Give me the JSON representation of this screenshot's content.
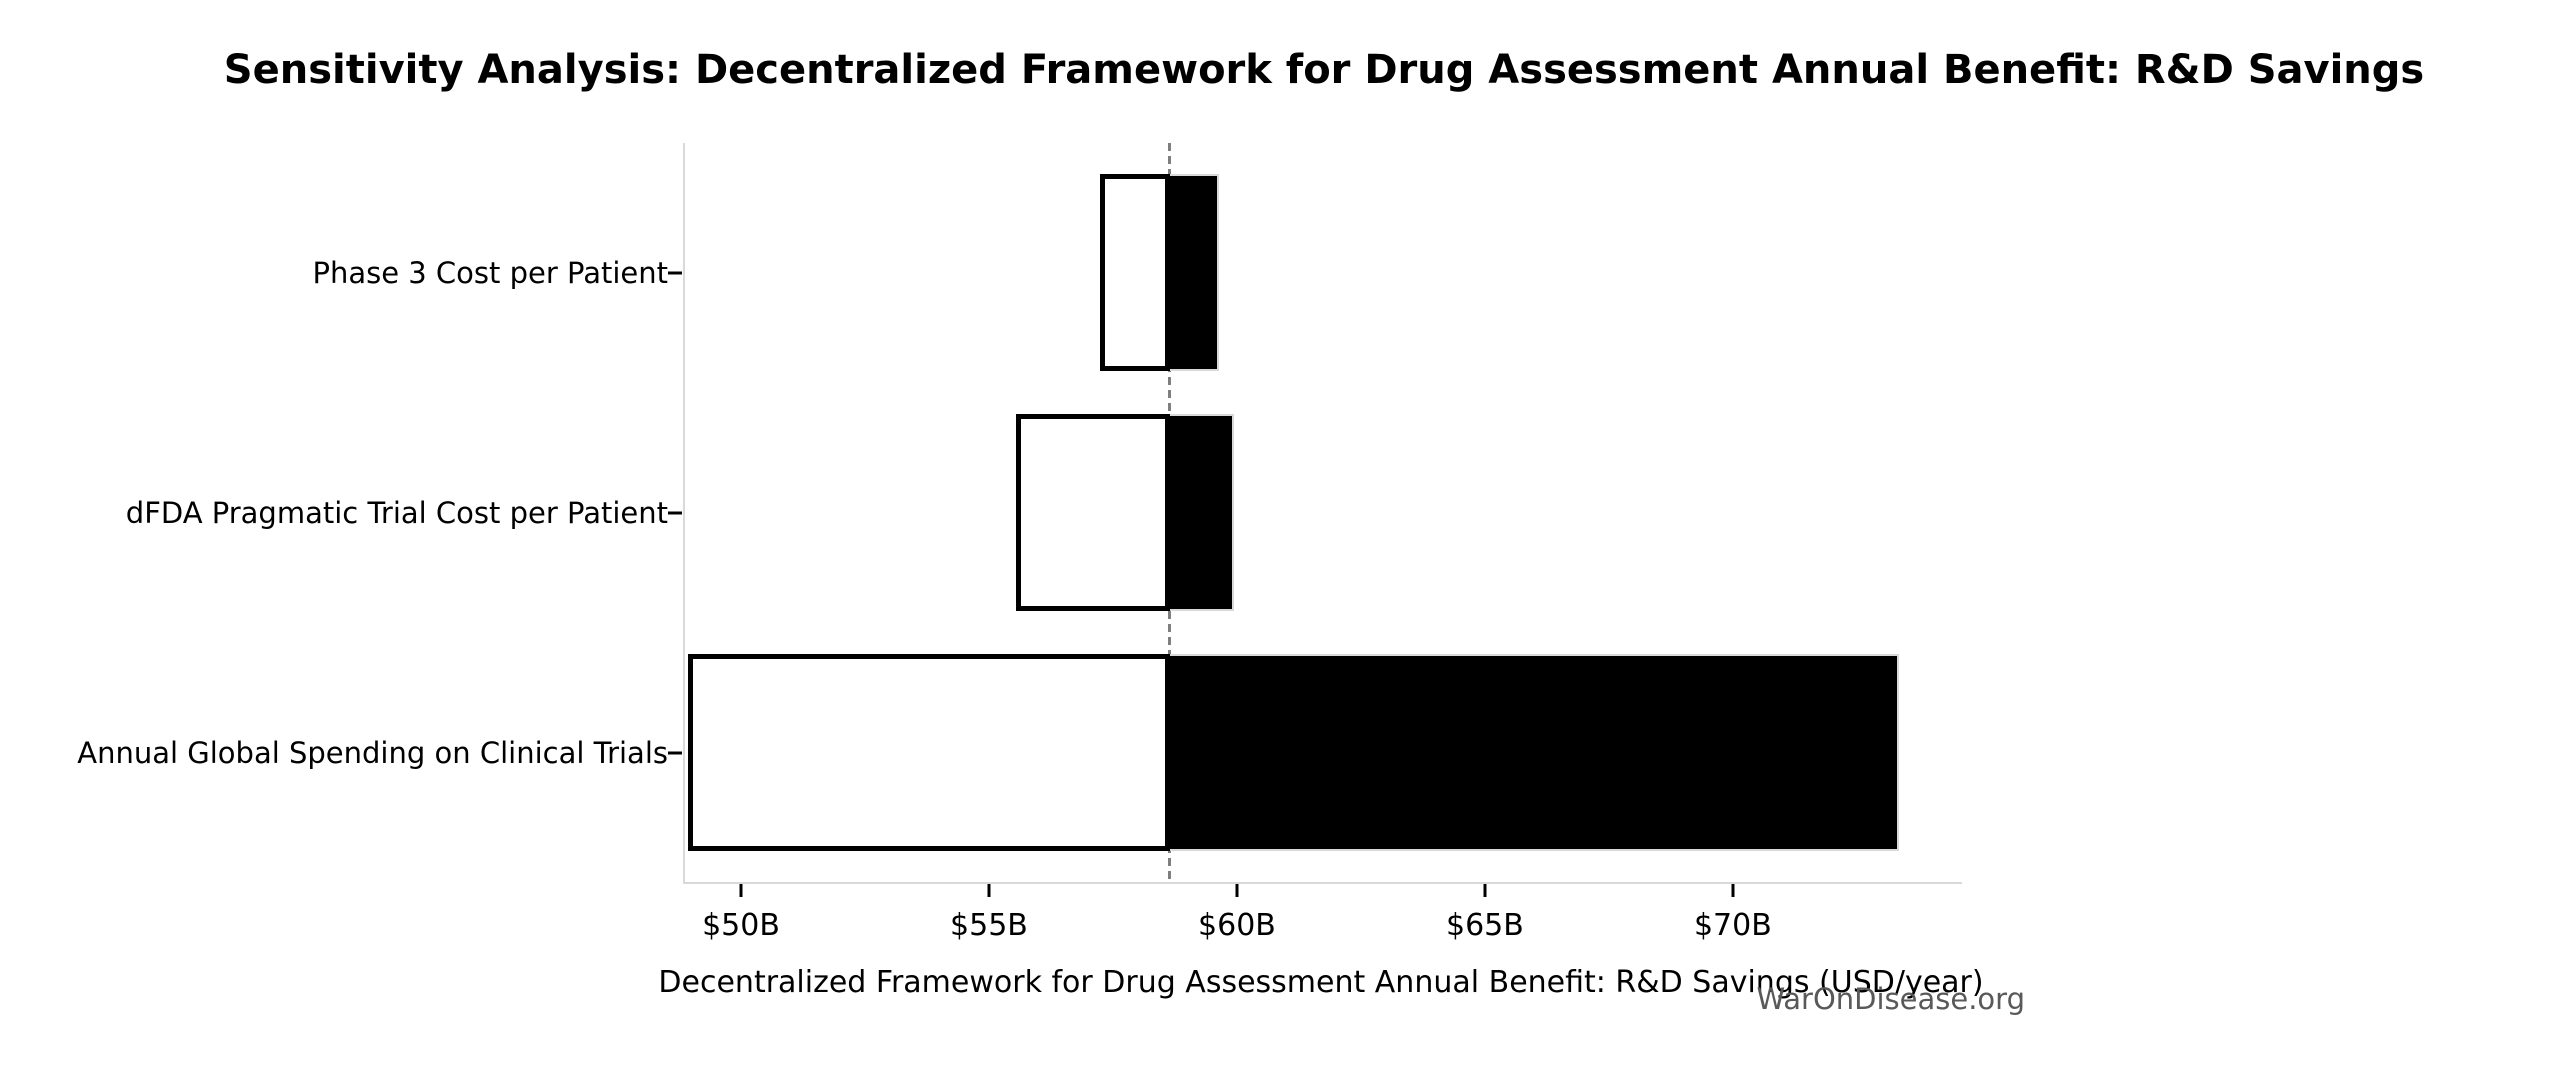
{
  "page": {
    "background_color": "#ffffff"
  },
  "chart_data": {
    "type": "bar",
    "subtype": "tornado-sensitivity",
    "orientation": "horizontal",
    "title": "Sensitivity Analysis: Decentralized Framework for Drug Assessment Annual Benefit: R&D Savings",
    "xlabel": "Decentralized Framework for Drug Assessment Annual Benefit: R&D Savings (USD/year)",
    "watermark": "WarOnDisease.org",
    "grid": false,
    "legend": false,
    "xlim": [
      48.83,
      74.58
    ],
    "baseline_value": 58.6,
    "x_ticks": [
      {
        "value": 50,
        "label": "$50B"
      },
      {
        "value": 55,
        "label": "$55B"
      },
      {
        "value": 60,
        "label": "$60B"
      },
      {
        "value": 65,
        "label": "$65B"
      },
      {
        "value": 70,
        "label": "$70B"
      }
    ],
    "categories": [
      "Phase 3 Cost per Patient",
      "dFDA Pragmatic Trial Cost per Patient",
      "Annual Global Spending on Clinical Trials"
    ],
    "bars": [
      {
        "label": "Phase 3 Cost per Patient",
        "low": 57.2,
        "high": 59.6
      },
      {
        "label": "dFDA Pragmatic Trial Cost per Patient",
        "low": 55.5,
        "high": 59.9
      },
      {
        "label": "Annual Global Spending on Clinical Trials",
        "low": 48.9,
        "high": 73.3
      }
    ],
    "colors": {
      "low_segment_fill": "#ffffff",
      "low_segment_edge": "#000000",
      "high_segment_fill": "#000000",
      "high_segment_edge": "#d9d9d9",
      "baseline_line": "#7f7f7f",
      "spine": "#d9d9d9",
      "tick": "#000000",
      "text": "#000000",
      "watermark_text": "#595959"
    }
  }
}
